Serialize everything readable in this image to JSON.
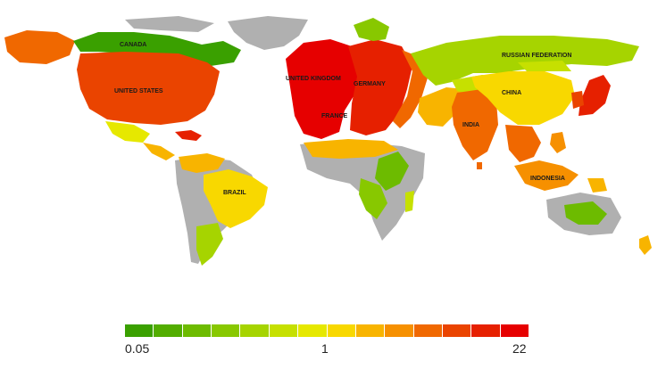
{
  "map": {
    "ocean_color": "#ffffff",
    "no_data_color": "#b0b0b0",
    "labels": {
      "canada": "CANADA",
      "united_states": "UNITED STATES",
      "brazil": "BRAZIL",
      "united_kingdom": "UNITED KINGDOM",
      "germany": "GERMANY",
      "france": "FRANCE",
      "russian_federation": "RUSSIAN FEDERATION",
      "china": "CHINA",
      "india": "INDIA",
      "indonesia": "INDONESIA"
    }
  },
  "legend": {
    "colors": [
      "#3aa000",
      "#52ad00",
      "#6dbb00",
      "#88c800",
      "#a6d400",
      "#c6e000",
      "#e6e800",
      "#f8d800",
      "#f8b400",
      "#f69000",
      "#f06800",
      "#ea4400",
      "#e62000",
      "#e60000"
    ],
    "tick_min": "0.05",
    "tick_mid": "1",
    "tick_max": "22"
  }
}
